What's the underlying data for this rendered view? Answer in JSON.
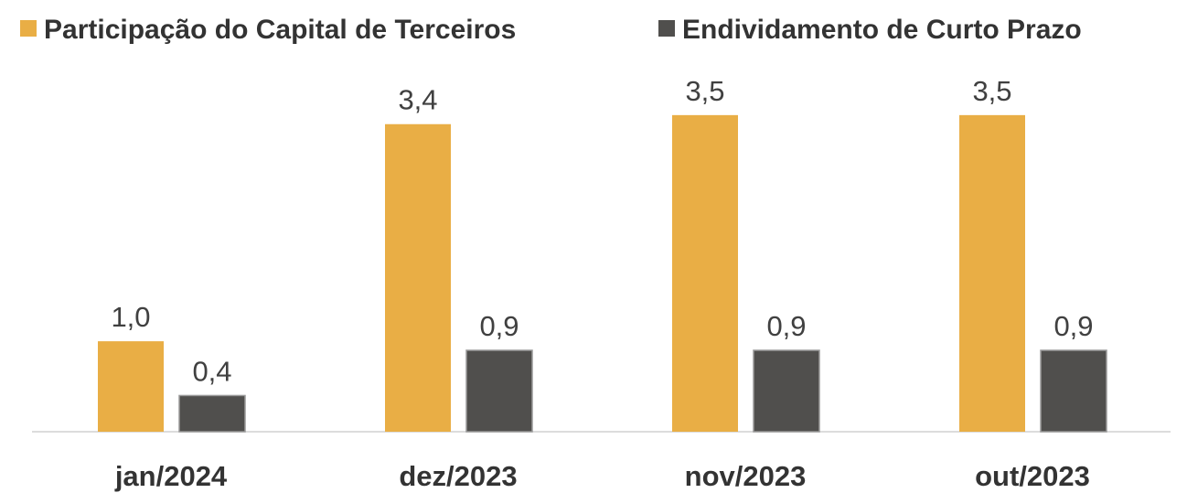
{
  "chart_data": {
    "type": "bar",
    "categories": [
      "jan/2024",
      "dez/2023",
      "nov/2023",
      "out/2023"
    ],
    "series": [
      {
        "name": "Participação do Capital de Terceiros",
        "color": "#e9ae45",
        "values": [
          1.0,
          3.4,
          3.5,
          3.5
        ],
        "value_labels": [
          "1,0",
          "3,4",
          "3,5",
          "3,5"
        ]
      },
      {
        "name": "Endividamento de Curto Prazo",
        "color": "#504f4d",
        "values": [
          0.4,
          0.9,
          0.9,
          0.9
        ],
        "value_labels": [
          "0,4",
          "0,9",
          "0,9",
          "0,9"
        ]
      }
    ],
    "legend": "top"
  }
}
